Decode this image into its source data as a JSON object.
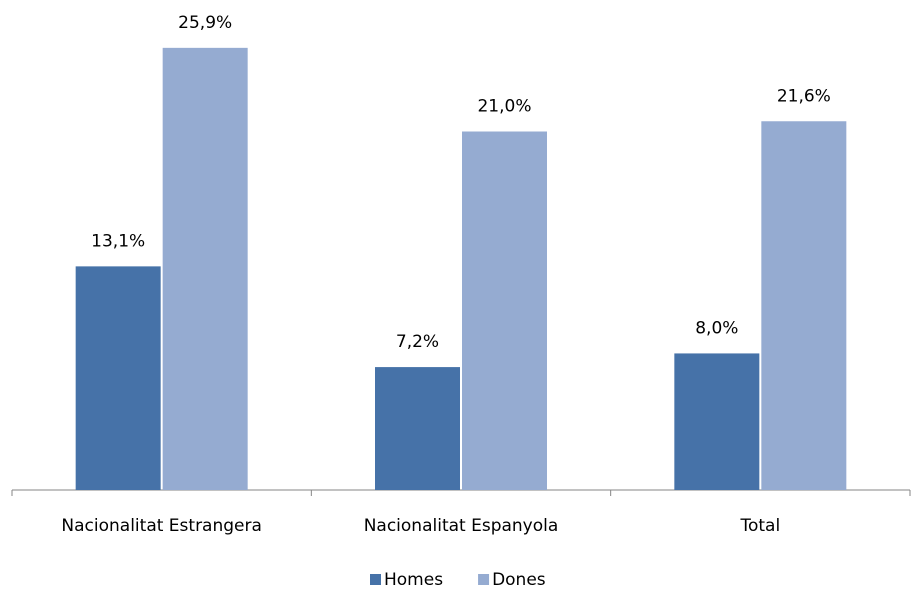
{
  "chart_data": {
    "type": "bar",
    "categories": [
      "Nacionalitat Estrangera",
      "Nacionalitat Espanyola",
      "Total"
    ],
    "series": [
      {
        "name": "Homes",
        "color": "#4672a8",
        "values": [
          13.1,
          7.2,
          8.0
        ],
        "value_labels": [
          "13,1%",
          "7,2%",
          "8,0%"
        ]
      },
      {
        "name": "Dones",
        "color": "#95abd1",
        "values": [
          25.9,
          21.0,
          21.6
        ],
        "value_labels": [
          "25,9%",
          "21,0%",
          "21,6%"
        ]
      }
    ],
    "ylim": [
      0,
      28
    ],
    "legend": "bottom"
  }
}
